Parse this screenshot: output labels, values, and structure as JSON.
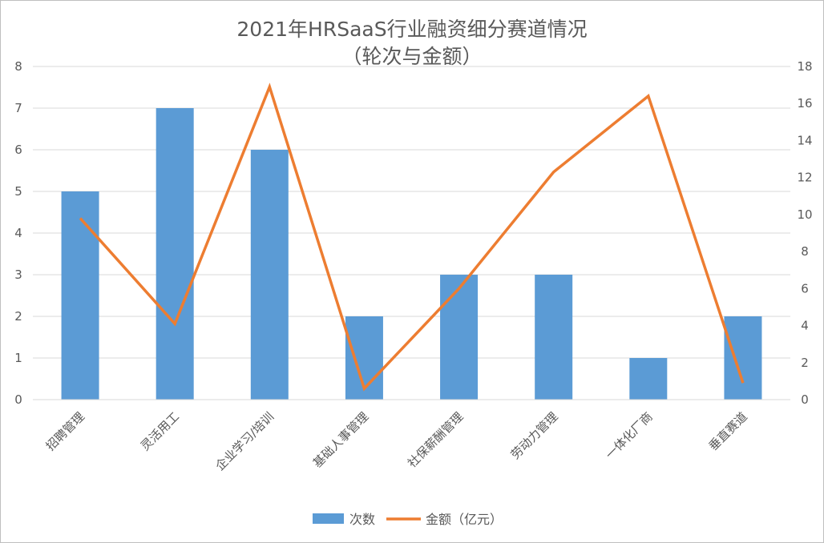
{
  "chart_data": {
    "type": "bar",
    "title": "2021年HRSaaS行业融资细分赛道情况",
    "subtitle": "（轮次与金额）",
    "categories": [
      "招聘管理",
      "灵活用工",
      "企业学习/培训",
      "基础人事管理",
      "社保薪酬管理",
      "劳动力管理",
      "一体化厂商",
      "垂直赛道"
    ],
    "series": [
      {
        "name": "次数",
        "type": "bar",
        "axis": "left",
        "color": "#5b9bd5",
        "values": [
          5,
          7,
          6,
          2,
          3,
          3,
          1,
          2
        ]
      },
      {
        "name": "金额（亿元）",
        "type": "line",
        "axis": "right",
        "color": "#ed7d31",
        "values": [
          9.8,
          4.1,
          16.9,
          0.6,
          6.0,
          12.3,
          16.4,
          0.9
        ]
      }
    ],
    "y_left": {
      "min": 0,
      "max": 8,
      "ticks": [
        "0",
        "1",
        "2",
        "3",
        "4",
        "5",
        "6",
        "7",
        "8"
      ]
    },
    "y_right": {
      "min": 0,
      "max": 18,
      "ticks": [
        "0",
        "2",
        "4",
        "6",
        "8",
        "10",
        "12",
        "14",
        "16",
        "18"
      ]
    },
    "grid": true,
    "legend": "bottom"
  }
}
